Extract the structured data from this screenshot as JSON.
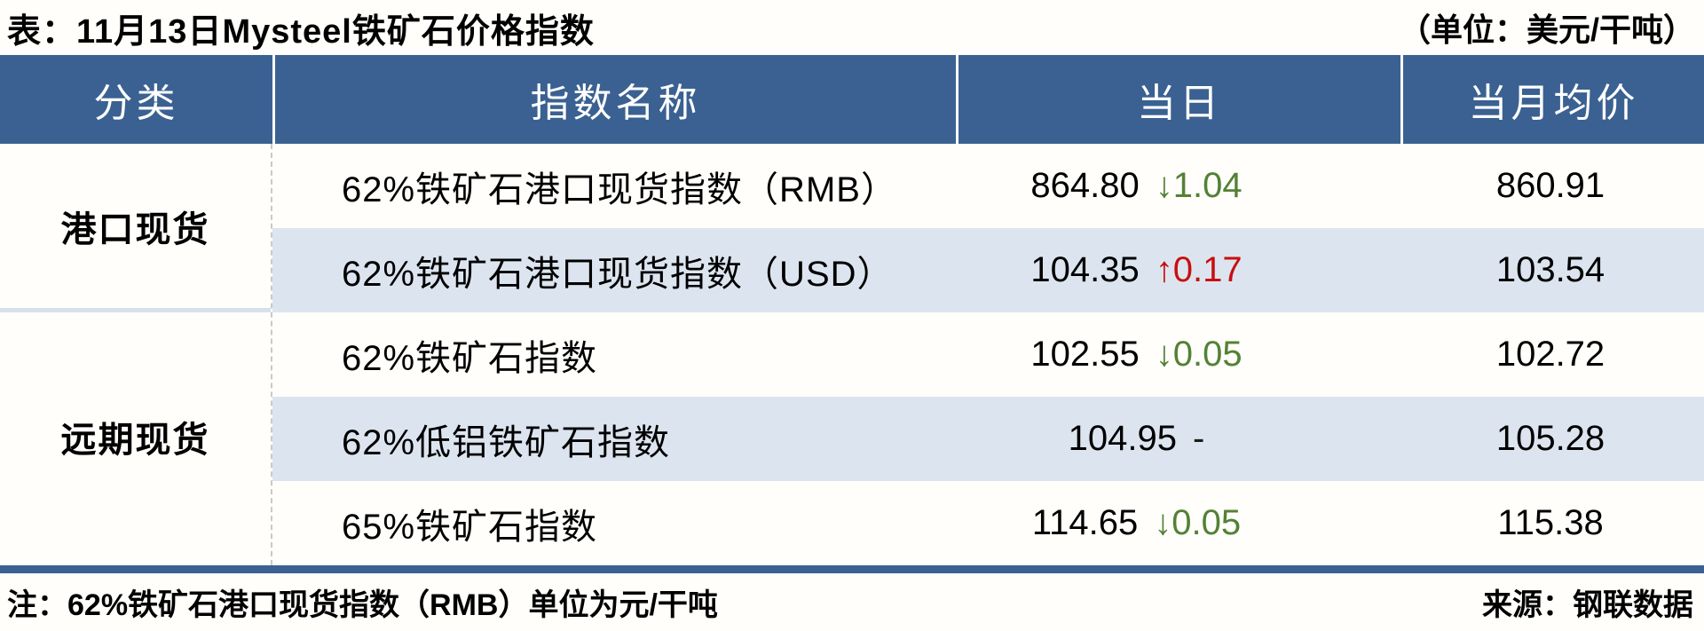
{
  "title": "表：11月13日Mysteel铁矿石价格指数",
  "unit_note": "（单位：美元/干吨）",
  "columns": [
    "分类",
    "指数名称",
    "当日",
    "当月均价"
  ],
  "groups": [
    {
      "label": "港口现货"
    },
    {
      "label": "远期现货"
    }
  ],
  "rows": [
    {
      "name": "62%铁矿石港口现货指数（RMB）",
      "today": "864.80",
      "change": "↓1.04",
      "change_class": "chg-down",
      "monthly_avg": "860.91"
    },
    {
      "name": "62%铁矿石港口现货指数（USD）",
      "today": "104.35",
      "change": "↑0.17",
      "change_class": "chg-up",
      "monthly_avg": "103.54"
    },
    {
      "name": "62%铁矿石指数",
      "today": "102.55",
      "change": "↓0.05",
      "change_class": "chg-down",
      "monthly_avg": "102.72"
    },
    {
      "name": "62%低铝铁矿石指数",
      "today": "104.95",
      "change": "-",
      "change_class": "chg-flat",
      "monthly_avg": "105.28"
    },
    {
      "name": "65%铁矿石指数",
      "today": "114.65",
      "change": "↓0.05",
      "change_class": "chg-down",
      "monthly_avg": "115.38"
    }
  ],
  "footer": {
    "note": "注：62%铁矿石港口现货指数（RMB）单位为元/干吨",
    "source": "来源：钢联数据"
  },
  "colors": {
    "header_bg": "#3a6191",
    "row_alt_bg": "#dce5ef",
    "down_green": "#538135",
    "up_red": "#c80f0f"
  }
}
